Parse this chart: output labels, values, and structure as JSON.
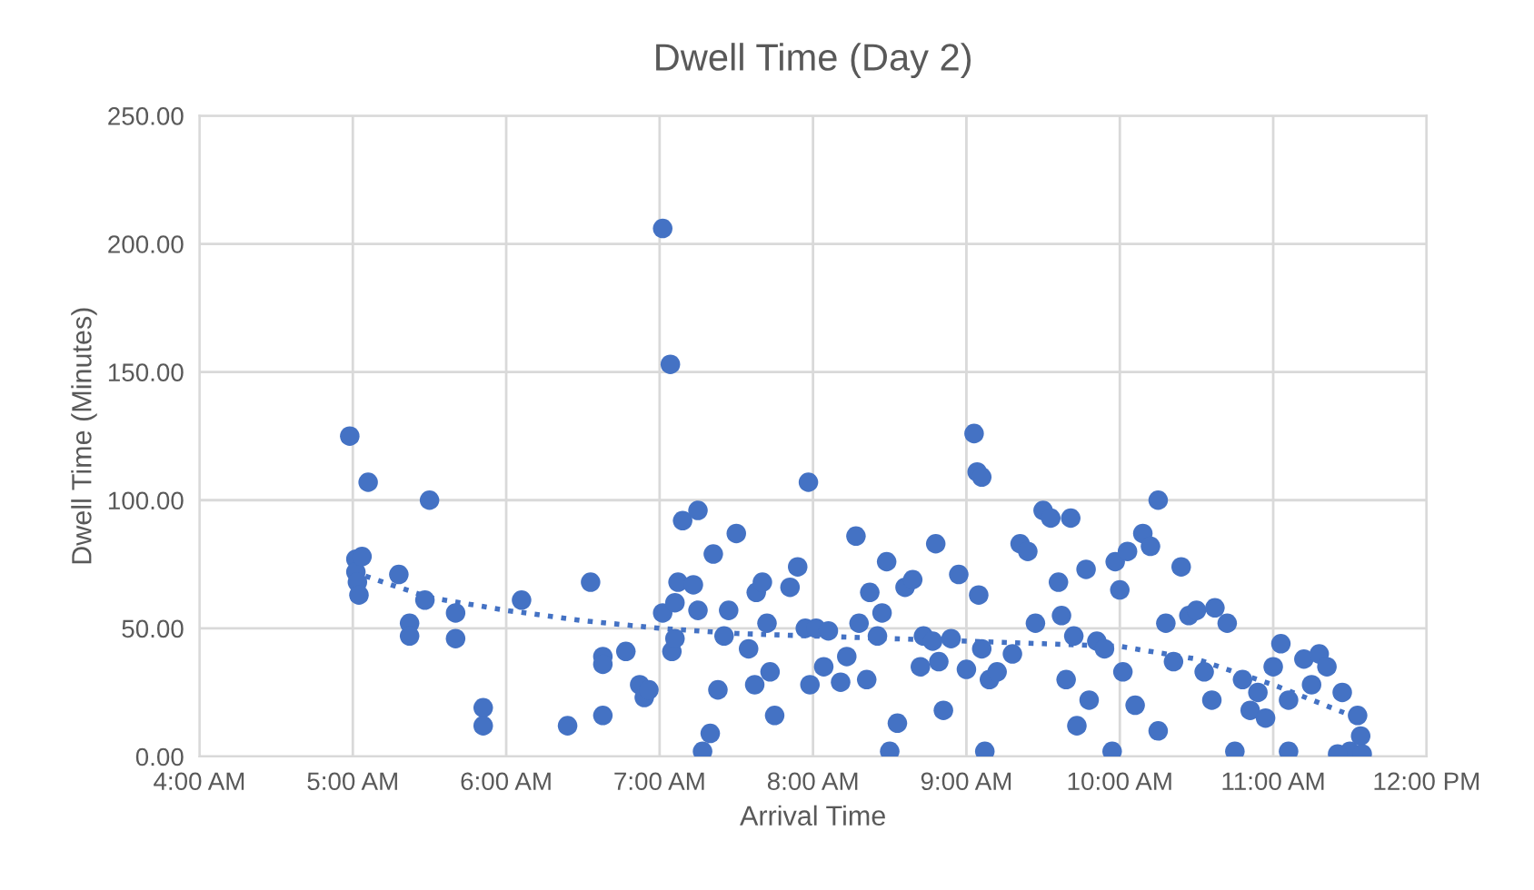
{
  "chart_data": {
    "type": "scatter",
    "title": "Dwell Time (Day 2)",
    "xlabel": "Arrival Time",
    "ylabel": "Dwell Time (Minutes)",
    "xlim": [
      4,
      12
    ],
    "xticks": [
      {
        "value": 4,
        "label": "4:00 AM"
      },
      {
        "value": 5,
        "label": "5:00 AM"
      },
      {
        "value": 6,
        "label": "6:00 AM"
      },
      {
        "value": 7,
        "label": "7:00 AM"
      },
      {
        "value": 8,
        "label": "8:00 AM"
      },
      {
        "value": 9,
        "label": "9:00 AM"
      },
      {
        "value": 10,
        "label": "10:00 AM"
      },
      {
        "value": 11,
        "label": "11:00 AM"
      },
      {
        "value": 12,
        "label": "12:00 PM"
      }
    ],
    "ylim": [
      0,
      250
    ],
    "yticks": [
      {
        "value": 0,
        "label": "0.00"
      },
      {
        "value": 50,
        "label": "50.00"
      },
      {
        "value": 100,
        "label": "100.00"
      },
      {
        "value": 150,
        "label": "150.00"
      },
      {
        "value": 200,
        "label": "200.00"
      },
      {
        "value": 250,
        "label": "250.00"
      }
    ],
    "grid": true,
    "legend": false,
    "marker": "circle",
    "series": [
      {
        "color": "#4472c4",
        "x": [
          4.98,
          5.02,
          5.02,
          5.03,
          5.04,
          5.06,
          5.1,
          5.3,
          5.37,
          5.37,
          5.47,
          5.5,
          5.67,
          5.67,
          5.85,
          5.85,
          6.1,
          6.4,
          6.55,
          6.63,
          6.63,
          6.63,
          6.78,
          6.87,
          6.9,
          6.93,
          7.02,
          7.07,
          7.02,
          7.08,
          7.1,
          7.1,
          7.12,
          7.15,
          7.22,
          7.25,
          7.25,
          7.28,
          7.33,
          7.35,
          7.38,
          7.42,
          7.45,
          7.5,
          7.58,
          7.62,
          7.63,
          7.67,
          7.7,
          7.72,
          7.75,
          7.85,
          7.9,
          7.97,
          7.95,
          7.98,
          8.02,
          8.07,
          8.1,
          8.18,
          8.22,
          8.28,
          8.3,
          8.35,
          8.37,
          8.42,
          8.45,
          8.48,
          8.5,
          8.55,
          8.6,
          8.65,
          8.7,
          8.72,
          8.78,
          8.8,
          8.82,
          8.85,
          8.9,
          8.95,
          9.0,
          9.05,
          9.07,
          9.1,
          9.08,
          9.1,
          9.12,
          9.15,
          9.2,
          9.3,
          9.35,
          9.4,
          9.45,
          9.5,
          9.55,
          9.6,
          9.62,
          9.65,
          9.68,
          9.7,
          9.72,
          9.78,
          9.8,
          9.85,
          9.9,
          9.95,
          9.97,
          10.0,
          10.02,
          10.05,
          10.1,
          10.15,
          10.2,
          10.25,
          10.25,
          10.3,
          10.35,
          10.4,
          10.45,
          10.5,
          10.55,
          10.6,
          10.62,
          10.7,
          10.75,
          10.8,
          10.85,
          10.9,
          10.95,
          11.0,
          11.05,
          11.1,
          11.1,
          11.2,
          11.25,
          11.3,
          11.35,
          11.45,
          11.5,
          11.55,
          11.57,
          11.58,
          11.42
        ],
        "values": [
          125,
          77,
          72,
          68,
          63,
          78,
          107,
          71,
          52,
          47,
          61,
          100,
          56,
          46,
          19,
          12,
          61,
          12,
          68,
          39,
          36,
          16,
          41,
          28,
          23,
          26,
          206,
          153,
          56,
          41,
          46,
          60,
          68,
          92,
          67,
          57,
          96,
          2,
          9,
          79,
          26,
          47,
          57,
          87,
          42,
          28,
          64,
          68,
          52,
          33,
          16,
          66,
          74,
          107,
          50,
          28,
          50,
          35,
          49,
          29,
          39,
          86,
          52,
          30,
          64,
          47,
          56,
          76,
          2,
          13,
          66,
          69,
          35,
          47,
          45,
          83,
          37,
          18,
          46,
          71,
          34,
          126,
          111,
          109,
          63,
          42,
          2,
          30,
          33,
          40,
          83,
          80,
          52,
          96,
          93,
          68,
          55,
          30,
          93,
          47,
          12,
          73,
          22,
          45,
          42,
          2,
          76,
          65,
          33,
          80,
          20,
          87,
          82,
          100,
          10,
          52,
          37,
          74,
          55,
          57,
          33,
          22,
          58,
          52,
          2,
          30,
          18,
          25,
          15,
          35,
          44,
          22,
          2,
          38,
          28,
          40,
          35,
          25,
          2,
          16,
          8,
          1,
          1
        ]
      },
      {
        "type": "line",
        "color": "#4472c4",
        "line_style": "dotted",
        "marker": "none",
        "x": [
          5.0,
          5.5,
          6,
          6.5,
          7,
          7.5,
          8,
          8.5,
          9,
          9.5,
          10,
          10.5,
          11,
          11.55
        ],
        "values": [
          72,
          62,
          57,
          53,
          50,
          48,
          47,
          46,
          45,
          44,
          43,
          38,
          28,
          15
        ]
      }
    ]
  }
}
